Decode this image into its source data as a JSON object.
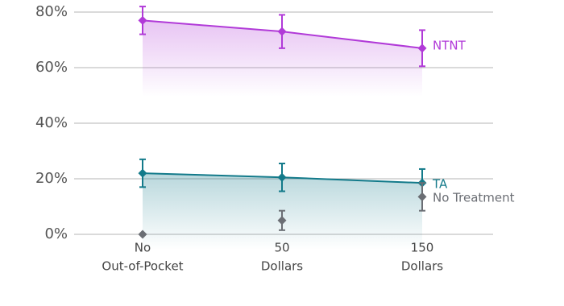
{
  "chart_data": {
    "type": "line",
    "categories": [
      [
        "No",
        "Out-of-Pocket"
      ],
      [
        "50",
        "Dollars"
      ],
      [
        "150",
        "Dollars"
      ]
    ],
    "series": [
      {
        "name": "NTNT",
        "color": "#b13ad8",
        "values": [
          77,
          73,
          67
        ],
        "errors": [
          5,
          6,
          6.5
        ],
        "line": true
      },
      {
        "name": "TA",
        "color": "#137a8a",
        "values": [
          22,
          20.5,
          18.5
        ],
        "errors": [
          5,
          5,
          5
        ],
        "line": true
      },
      {
        "name": "No Treatment",
        "color": "#6b6e74",
        "values": [
          0,
          5,
          13.5
        ],
        "errors": [
          0,
          3.5,
          5
        ],
        "line": false
      }
    ],
    "ylim": [
      0,
      80
    ],
    "yticks": [
      {
        "value": 0,
        "label": "0%"
      },
      {
        "value": 20,
        "label": "20%"
      },
      {
        "value": 40,
        "label": "40%"
      },
      {
        "value": 60,
        "label": "60%"
      },
      {
        "value": 80,
        "label": "80%"
      }
    ],
    "grid": true
  }
}
